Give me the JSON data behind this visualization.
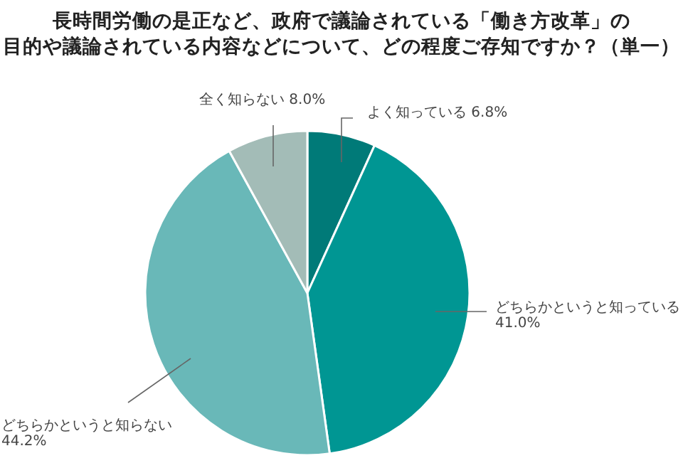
{
  "chart_data": {
    "type": "pie",
    "title": "長時間労働の是正など、政府で議論されている「働き方改革」の目的や議論されている内容などについて、どの程度ご存知ですか？（単一）",
    "categories": [
      "よく知っている",
      "どちらかというと知っている",
      "どちらかというと知らない",
      "全く知らない"
    ],
    "values": [
      6.8,
      41.0,
      44.2,
      8.0
    ],
    "value_labels": [
      "6.8%",
      "41.0%",
      "44.2%",
      "8.0%"
    ],
    "colors": [
      "#007a78",
      "#009693",
      "#69b8b8",
      "#a3bcb7"
    ]
  }
}
